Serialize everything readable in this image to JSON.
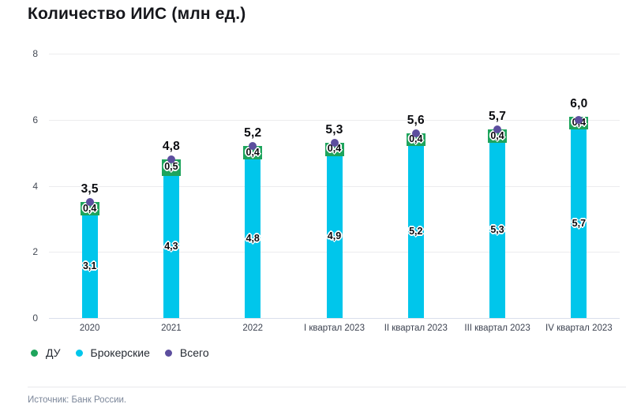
{
  "title": "Количество ИИС (млн ед.)",
  "source": "Источник: Банк России.",
  "legend": [
    {
      "label": "ДУ",
      "color": "#1ea45c"
    },
    {
      "label": "Брокерские",
      "color": "#00c6eb"
    },
    {
      "label": "Всего",
      "color": "#5c4e9e"
    }
  ],
  "chart_data": {
    "type": "bar",
    "stacked": true,
    "title": "Количество ИИС (млн ед.)",
    "categories": [
      "2020",
      "2021",
      "2022",
      "I квартал 2023",
      "II квартал 2023",
      "III квартал 2023",
      "IV квартал 2023"
    ],
    "series": [
      {
        "name": "Брокерские",
        "role": "stack-bottom",
        "color": "#00c6eb",
        "values": [
          3.1,
          4.3,
          4.8,
          4.9,
          5.2,
          5.3,
          5.7
        ],
        "labels": [
          "3,1",
          "4,3",
          "4,8",
          "4,9",
          "5,2",
          "5,3",
          "5,7"
        ]
      },
      {
        "name": "ДУ",
        "role": "stack-top",
        "color": "#1ea45c",
        "values": [
          0.4,
          0.5,
          0.4,
          0.4,
          0.4,
          0.4,
          0.4
        ],
        "labels": [
          "0,4",
          "0,5",
          "0,4",
          "0,4",
          "0,4",
          "0,4",
          "0,4"
        ]
      },
      {
        "name": "Всего",
        "role": "point-total",
        "color": "#5c4e9e",
        "values": [
          3.5,
          4.8,
          5.2,
          5.3,
          5.6,
          5.7,
          6.0
        ],
        "labels": [
          "3,5",
          "4,8",
          "5,2",
          "5,3",
          "5,6",
          "5,7",
          "6,0"
        ]
      }
    ],
    "xlabel": "",
    "ylabel": "",
    "yticks": [
      0,
      2,
      4,
      6,
      8
    ],
    "ylim": [
      0,
      8
    ],
    "grid": true,
    "legend_position": "bottom"
  }
}
